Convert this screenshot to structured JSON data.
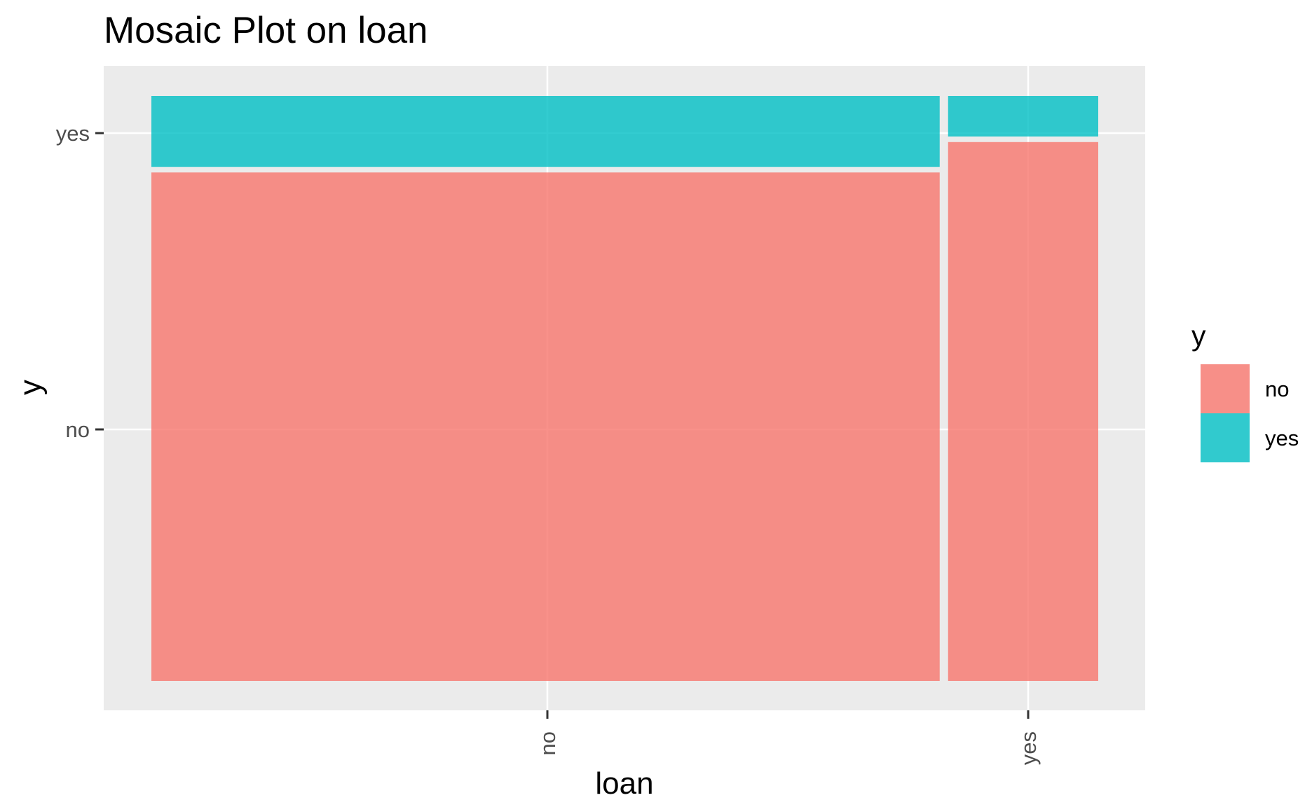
{
  "chart_data": {
    "type": "mosaic",
    "title": "Mosaic Plot on loan",
    "xlabel": "loan",
    "ylabel": "y",
    "x_categories": [
      "no",
      "yes"
    ],
    "y_categories": [
      "no",
      "yes"
    ],
    "x_proportions": [
      0.84,
      0.16
    ],
    "series": [
      {
        "name": "no",
        "color": "#F8766D",
        "values": [
          0.874,
          0.926
        ]
      },
      {
        "name": "yes",
        "color": "#00BFC4",
        "values": [
          0.126,
          0.074
        ]
      }
    ],
    "x_ticks": [
      "no",
      "yes"
    ],
    "y_ticks": [
      "yes",
      "no"
    ],
    "legend": {
      "title": "y",
      "position": "right",
      "entries": [
        "no",
        "yes"
      ]
    },
    "grid": true,
    "panel_background": "#EBEBEB",
    "fill_opacity": 0.8
  }
}
